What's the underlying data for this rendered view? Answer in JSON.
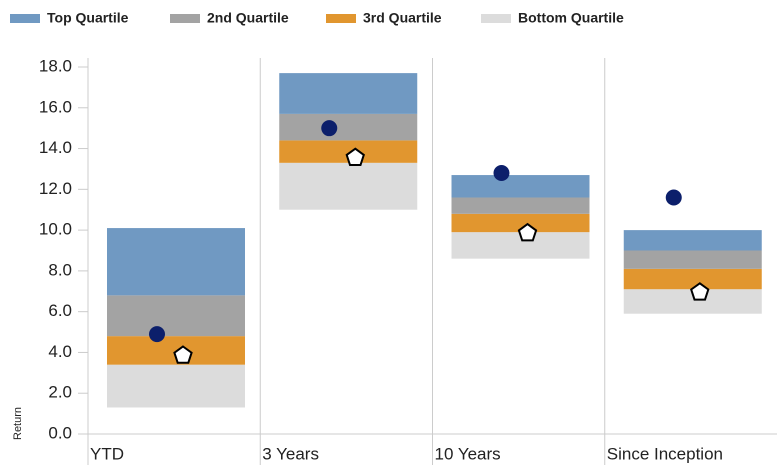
{
  "chart_data": {
    "type": "floating_stacked_bar",
    "y_label": "Return",
    "categories": [
      "YTD",
      "3 Years",
      "10 Years",
      "Since Inception"
    ],
    "base": [
      1.3,
      11.0,
      8.6,
      5.9
    ],
    "series": [
      {
        "name": "Top Quartile",
        "color": "#7099c2",
        "values": [
          3.3,
          2.0,
          1.1,
          1.0
        ]
      },
      {
        "name": "2nd Quartile",
        "color": "#a3a3a3",
        "values": [
          2.0,
          1.3,
          0.8,
          0.9
        ]
      },
      {
        "name": "3rd Quartile",
        "color": "#e1962f",
        "values": [
          1.4,
          1.1,
          0.9,
          1.0
        ]
      },
      {
        "name": "Bottom Quartile",
        "color": "#dcdcdc",
        "values": [
          2.1,
          2.3,
          1.3,
          1.2
        ]
      }
    ],
    "markers": [
      {
        "shape": "circle",
        "color": "#0c1f6b",
        "values": [
          4.9,
          15.0,
          12.8,
          11.6
        ]
      },
      {
        "shape": "pentagon",
        "color": "#000000",
        "values": [
          3.9,
          13.6,
          9.9,
          7.0
        ]
      }
    ],
    "ylim": [
      0,
      18
    ],
    "yticks": [
      {
        "value": 0,
        "label": "0.0"
      },
      {
        "value": 2,
        "label": "2.0"
      },
      {
        "value": 4,
        "label": "4.0"
      },
      {
        "value": 6,
        "label": "6.0"
      },
      {
        "value": 8,
        "label": "8.0"
      },
      {
        "value": 10,
        "label": "10.0"
      },
      {
        "value": 12,
        "label": "12.0"
      },
      {
        "value": 14,
        "label": "14.0"
      },
      {
        "value": 16,
        "label": "16.0"
      },
      {
        "value": 18,
        "label": "18.0"
      }
    ]
  }
}
